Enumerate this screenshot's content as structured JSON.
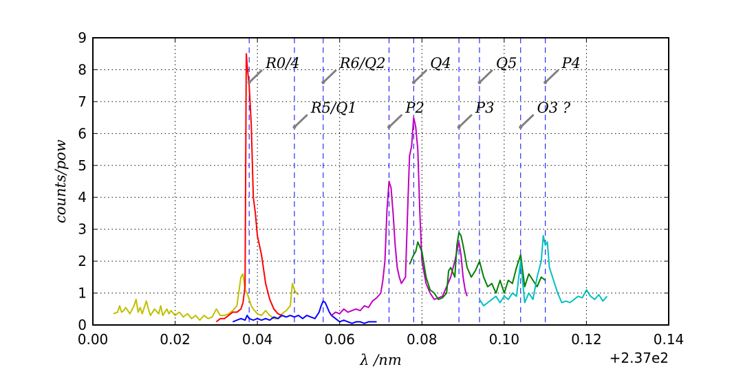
{
  "chart_data": {
    "type": "line",
    "title": "",
    "xlabel": "λ /nm",
    "ylabel": "counts/pow",
    "x_offset_label": "+2.37e2",
    "xlim": [
      0.0,
      0.14
    ],
    "ylim": [
      0,
      9
    ],
    "grid": true,
    "x_ticks": [
      0.0,
      0.02,
      0.04,
      0.06,
      0.08,
      0.1,
      0.12,
      0.14
    ],
    "x_tick_labels": [
      "0.00",
      "0.02",
      "0.04",
      "0.06",
      "0.08",
      "0.10",
      "0.12",
      "0.14"
    ],
    "y_ticks": [
      0,
      1,
      2,
      3,
      4,
      5,
      6,
      7,
      8,
      9
    ],
    "y_tick_labels": [
      "0",
      "1",
      "2",
      "3",
      "4",
      "5",
      "6",
      "7",
      "8",
      "9"
    ],
    "vlines": [
      0.038,
      0.049,
      0.056,
      0.072,
      0.078,
      0.089,
      0.094,
      0.104,
      0.11
    ],
    "annotations": [
      {
        "text": "R0/4",
        "x": 0.038,
        "y": 7.6,
        "tx": 0.042,
        "ty": 8.1
      },
      {
        "text": "R5/Q1",
        "x": 0.049,
        "y": 6.2,
        "tx": 0.053,
        "ty": 6.7
      },
      {
        "text": "R6/Q2",
        "x": 0.056,
        "y": 7.6,
        "tx": 0.06,
        "ty": 8.1
      },
      {
        "text": "P2",
        "x": 0.072,
        "y": 6.2,
        "tx": 0.076,
        "ty": 6.7
      },
      {
        "text": "Q4",
        "x": 0.078,
        "y": 7.6,
        "tx": 0.082,
        "ty": 8.1
      },
      {
        "text": "P3",
        "x": 0.089,
        "y": 6.2,
        "tx": 0.093,
        "ty": 6.7
      },
      {
        "text": "Q5",
        "x": 0.094,
        "y": 7.6,
        "tx": 0.098,
        "ty": 8.1
      },
      {
        "text": "O3 ?",
        "x": 0.104,
        "y": 6.2,
        "tx": 0.108,
        "ty": 6.7
      },
      {
        "text": "P4",
        "x": 0.11,
        "y": 7.6,
        "tx": 0.114,
        "ty": 8.1
      }
    ],
    "series": [
      {
        "color": "#bfbf00",
        "x": [
          0.005,
          0.006,
          0.0065,
          0.007,
          0.0075,
          0.008,
          0.009,
          0.01,
          0.0105,
          0.011,
          0.0115,
          0.012,
          0.013,
          0.0135,
          0.014,
          0.015,
          0.016,
          0.0165,
          0.017,
          0.018,
          0.0185,
          0.019,
          0.02,
          0.021,
          0.022,
          0.023,
          0.024,
          0.025,
          0.026,
          0.027,
          0.028,
          0.029,
          0.03,
          0.031,
          0.032,
          0.033,
          0.034,
          0.035,
          0.036,
          0.0365,
          0.037,
          0.0375,
          0.038,
          0.0385,
          0.039,
          0.04,
          0.041,
          0.042,
          0.043,
          0.044,
          0.045,
          0.046,
          0.047,
          0.048,
          0.0485,
          0.049,
          0.0495,
          0.05
        ],
        "y": [
          0.35,
          0.4,
          0.6,
          0.4,
          0.45,
          0.55,
          0.35,
          0.6,
          0.8,
          0.4,
          0.55,
          0.35,
          0.75,
          0.5,
          0.3,
          0.5,
          0.35,
          0.6,
          0.3,
          0.5,
          0.35,
          0.45,
          0.3,
          0.4,
          0.25,
          0.35,
          0.2,
          0.3,
          0.15,
          0.3,
          0.2,
          0.25,
          0.5,
          0.3,
          0.3,
          0.35,
          0.45,
          0.6,
          1.5,
          1.6,
          1.1,
          1.0,
          0.8,
          0.6,
          0.5,
          0.35,
          0.3,
          0.45,
          0.3,
          0.2,
          0.2,
          0.35,
          0.45,
          0.6,
          1.3,
          1.1,
          1.0,
          0.95
        ]
      },
      {
        "color": "#ff0000",
        "x": [
          0.03,
          0.031,
          0.032,
          0.033,
          0.034,
          0.035,
          0.036,
          0.0365,
          0.037,
          0.0373,
          0.0376,
          0.038,
          0.0385,
          0.039,
          0.0395,
          0.04,
          0.041,
          0.042,
          0.043,
          0.044,
          0.045,
          0.046,
          0.047
        ],
        "y": [
          0.1,
          0.2,
          0.2,
          0.3,
          0.4,
          0.4,
          0.5,
          0.7,
          1.2,
          8.5,
          8.0,
          7.5,
          6.3,
          4.0,
          3.5,
          2.8,
          2.2,
          1.3,
          0.8,
          0.5,
          0.35,
          0.3,
          0.25
        ]
      },
      {
        "color": "#0000ff",
        "x": [
          0.034,
          0.035,
          0.036,
          0.037,
          0.0375,
          0.038,
          0.039,
          0.04,
          0.041,
          0.042,
          0.043,
          0.044,
          0.045,
          0.046,
          0.047,
          0.048,
          0.049,
          0.05,
          0.051,
          0.052,
          0.053,
          0.054,
          0.055,
          0.0555,
          0.056,
          0.0565,
          0.057,
          0.0575,
          0.058,
          0.059,
          0.06,
          0.061,
          0.062,
          0.063,
          0.064,
          0.065,
          0.066,
          0.067,
          0.068,
          0.069
        ],
        "y": [
          0.1,
          0.15,
          0.2,
          0.15,
          0.3,
          0.2,
          0.15,
          0.2,
          0.15,
          0.2,
          0.15,
          0.25,
          0.2,
          0.3,
          0.25,
          0.3,
          0.25,
          0.3,
          0.2,
          0.3,
          0.25,
          0.2,
          0.4,
          0.6,
          0.75,
          0.7,
          0.55,
          0.4,
          0.3,
          0.2,
          0.1,
          0.15,
          0.1,
          0.05,
          0.1,
          0.1,
          0.05,
          0.1,
          0.1,
          0.1
        ]
      },
      {
        "color": "#bf00bf",
        "x": [
          0.058,
          0.059,
          0.06,
          0.061,
          0.062,
          0.063,
          0.064,
          0.065,
          0.066,
          0.067,
          0.068,
          0.069,
          0.07,
          0.0705,
          0.071,
          0.0715,
          0.072,
          0.0725,
          0.073,
          0.0735,
          0.074,
          0.0745,
          0.075,
          0.076,
          0.0765,
          0.077,
          0.0775,
          0.078,
          0.0785,
          0.079,
          0.0795,
          0.08,
          0.081,
          0.082,
          0.083,
          0.084,
          0.085,
          0.086,
          0.087,
          0.088,
          0.089,
          0.0895,
          0.09,
          0.0905,
          0.091
        ],
        "y": [
          0.3,
          0.4,
          0.35,
          0.5,
          0.4,
          0.45,
          0.5,
          0.45,
          0.6,
          0.55,
          0.75,
          0.85,
          1.0,
          1.4,
          2.0,
          3.6,
          4.5,
          4.3,
          3.5,
          2.5,
          1.8,
          1.5,
          1.3,
          1.5,
          3.5,
          5.3,
          5.6,
          6.5,
          6.2,
          5.5,
          3.5,
          2.0,
          1.3,
          1.0,
          0.8,
          0.85,
          0.9,
          1.2,
          1.5,
          2.0,
          2.6,
          2.2,
          1.5,
          1.1,
          0.9
        ]
      },
      {
        "color": "#007f00",
        "x": [
          0.077,
          0.078,
          0.0785,
          0.079,
          0.08,
          0.081,
          0.082,
          0.083,
          0.084,
          0.085,
          0.086,
          0.0865,
          0.087,
          0.088,
          0.0885,
          0.089,
          0.0895,
          0.09,
          0.091,
          0.092,
          0.093,
          0.094,
          0.095,
          0.096,
          0.097,
          0.098,
          0.099,
          0.1,
          0.101,
          0.102,
          0.103,
          0.104,
          0.105,
          0.106,
          0.107,
          0.108,
          0.109,
          0.11
        ],
        "y": [
          1.9,
          2.2,
          2.3,
          2.6,
          2.3,
          1.5,
          1.1,
          1.0,
          0.8,
          0.85,
          1.0,
          1.7,
          1.8,
          1.5,
          2.5,
          2.9,
          2.8,
          2.5,
          1.8,
          1.5,
          1.7,
          2.0,
          1.5,
          1.2,
          1.3,
          1.0,
          1.4,
          1.0,
          1.4,
          1.3,
          1.8,
          2.2,
          1.2,
          1.6,
          1.4,
          1.2,
          1.5,
          1.4
        ]
      },
      {
        "color": "#00bfbf",
        "x": [
          0.094,
          0.095,
          0.096,
          0.097,
          0.098,
          0.099,
          0.1,
          0.101,
          0.102,
          0.103,
          0.104,
          0.105,
          0.106,
          0.107,
          0.108,
          0.109,
          0.1095,
          0.11,
          0.1105,
          0.111,
          0.112,
          0.113,
          0.114,
          0.115,
          0.116,
          0.117,
          0.118,
          0.119,
          0.12,
          0.121,
          0.122,
          0.123,
          0.124,
          0.125
        ],
        "y": [
          0.8,
          0.6,
          0.7,
          0.8,
          0.9,
          0.7,
          0.9,
          0.8,
          1.0,
          0.9,
          2.0,
          0.7,
          1.0,
          0.8,
          1.5,
          2.0,
          2.8,
          2.5,
          2.6,
          1.8,
          1.4,
          1.0,
          0.7,
          0.75,
          0.7,
          0.8,
          0.9,
          0.85,
          1.1,
          0.9,
          0.8,
          0.95,
          0.75,
          0.9
        ]
      }
    ]
  }
}
